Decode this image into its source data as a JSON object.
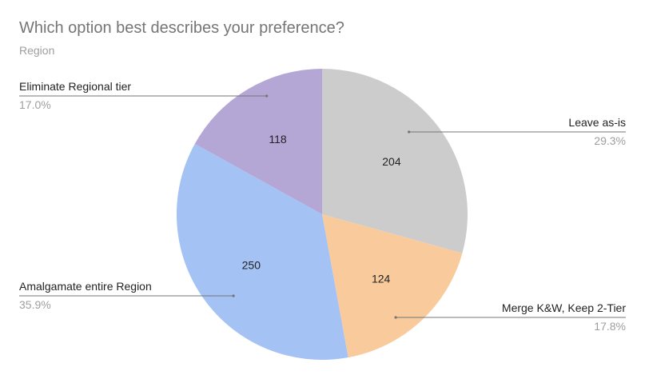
{
  "chart_data": {
    "type": "pie",
    "title": "Which option best describes your preference?",
    "subtitle": "Region",
    "categories": [
      "Leave as-is",
      "Merge K&W, Keep 2-Tier",
      "Amalgamate entire Region",
      "Eliminate Regional tier"
    ],
    "values": [
      204,
      124,
      250,
      118
    ],
    "value_labels": [
      "204",
      "124",
      "250",
      "118"
    ],
    "percent_labels": [
      "29.3%",
      "17.8%",
      "35.9%",
      "17.0%"
    ],
    "colors": [
      "#cccccc",
      "#f9cb9c",
      "#a4c2f4",
      "#b4a7d6"
    ],
    "start": "12 o'clock, clockwise",
    "legend": "none (labels with leader lines)"
  }
}
